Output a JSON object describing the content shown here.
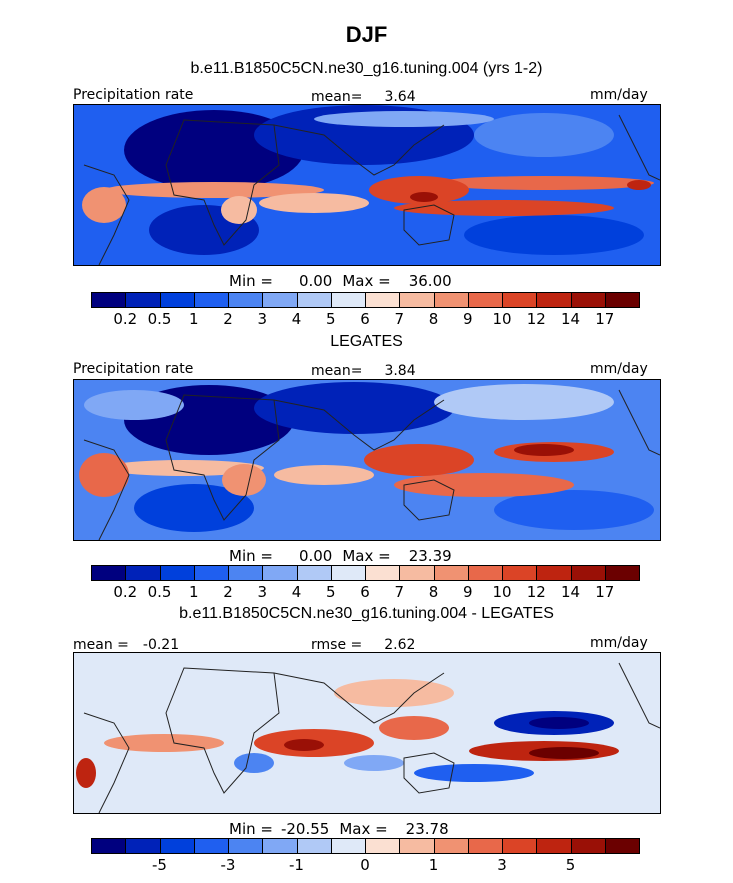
{
  "figure": {
    "season": "DJF",
    "model_title": "b.e11.B1850C5CN.ne30_g16.tuning.004 (yrs 1-2)",
    "obs_title": "LEGATES",
    "diff_title": "b.e11.B1850C5CN.ne30_g16.tuning.004 - LEGATES"
  },
  "colors": {
    "precip_scale": [
      "#00007f",
      "#0022b8",
      "#0040dc",
      "#1f5ff0",
      "#4c84f2",
      "#80a8f5",
      "#b0c9f6",
      "#dfe9f8",
      "#fbe0d2",
      "#f6bba1",
      "#f09272",
      "#e8684a",
      "#db4426",
      "#be2410",
      "#9a1006",
      "#6b0000"
    ],
    "diff_scale": [
      "#00007f",
      "#0022b8",
      "#0040dc",
      "#1f5ff0",
      "#4c84f2",
      "#80a8f5",
      "#b0c9f6",
      "#dfe9f8",
      "#fbe0d2",
      "#f6bba1",
      "#f09272",
      "#e8684a",
      "#db4426",
      "#be2410",
      "#9a1006",
      "#6b0000"
    ],
    "coastline": "#222222"
  },
  "chart_data": [
    {
      "type": "heatmap",
      "panel": "model",
      "variable": "Precipitation rate",
      "units": "mm/day",
      "mean_label": "mean=",
      "mean": "3.64",
      "min_label": "Min =",
      "min": "0.00",
      "max_label": "Max =",
      "max": "36.00",
      "colorbar_levels": [
        "0.2",
        "0.5",
        "1",
        "2",
        "3",
        "4",
        "5",
        "6",
        "7",
        "8",
        "9",
        "10",
        "12",
        "14",
        "17"
      ]
    },
    {
      "type": "heatmap",
      "panel": "observations",
      "variable": "Precipitation rate",
      "units": "mm/day",
      "mean_label": "mean=",
      "mean": "3.84",
      "min_label": "Min =",
      "min": "0.00",
      "max_label": "Max =",
      "max": "23.39",
      "colorbar_levels": [
        "0.2",
        "0.5",
        "1",
        "2",
        "3",
        "4",
        "5",
        "6",
        "7",
        "8",
        "9",
        "10",
        "12",
        "14",
        "17"
      ]
    },
    {
      "type": "heatmap",
      "panel": "difference",
      "units": "mm/day",
      "mean_label": "mean =",
      "mean": "-0.21",
      "rmse_label": "rmse =",
      "rmse": "2.62",
      "min_label": "Min =",
      "min": "-20.55",
      "max_label": "Max =",
      "max": "23.78",
      "colorbar_labels": [
        {
          "text": "-5",
          "boundary": 2
        },
        {
          "text": "-3",
          "boundary": 4
        },
        {
          "text": "-1",
          "boundary": 6
        },
        {
          "text": "0",
          "boundary": 8
        },
        {
          "text": "1",
          "boundary": 10
        },
        {
          "text": "3",
          "boundary": 12
        },
        {
          "text": "5",
          "boundary": 14
        }
      ]
    }
  ]
}
